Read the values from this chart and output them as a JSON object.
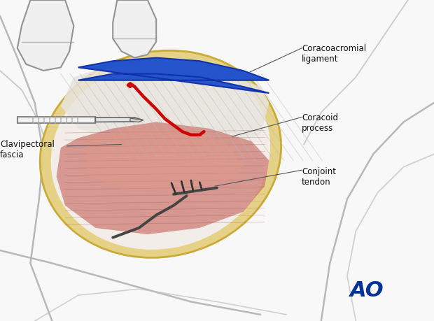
{
  "bg_color": "#f8f8f8",
  "title": "",
  "labels": {
    "coracoacromial": "Coracoacromial\nligament",
    "coracoid": "Coracoid\nprocess",
    "conjoint": "Conjoint\ntendon",
    "clavipectoral": "Clavipectoral\nfascia"
  },
  "ao_color": "#003399",
  "ao_fontsize": 22
}
